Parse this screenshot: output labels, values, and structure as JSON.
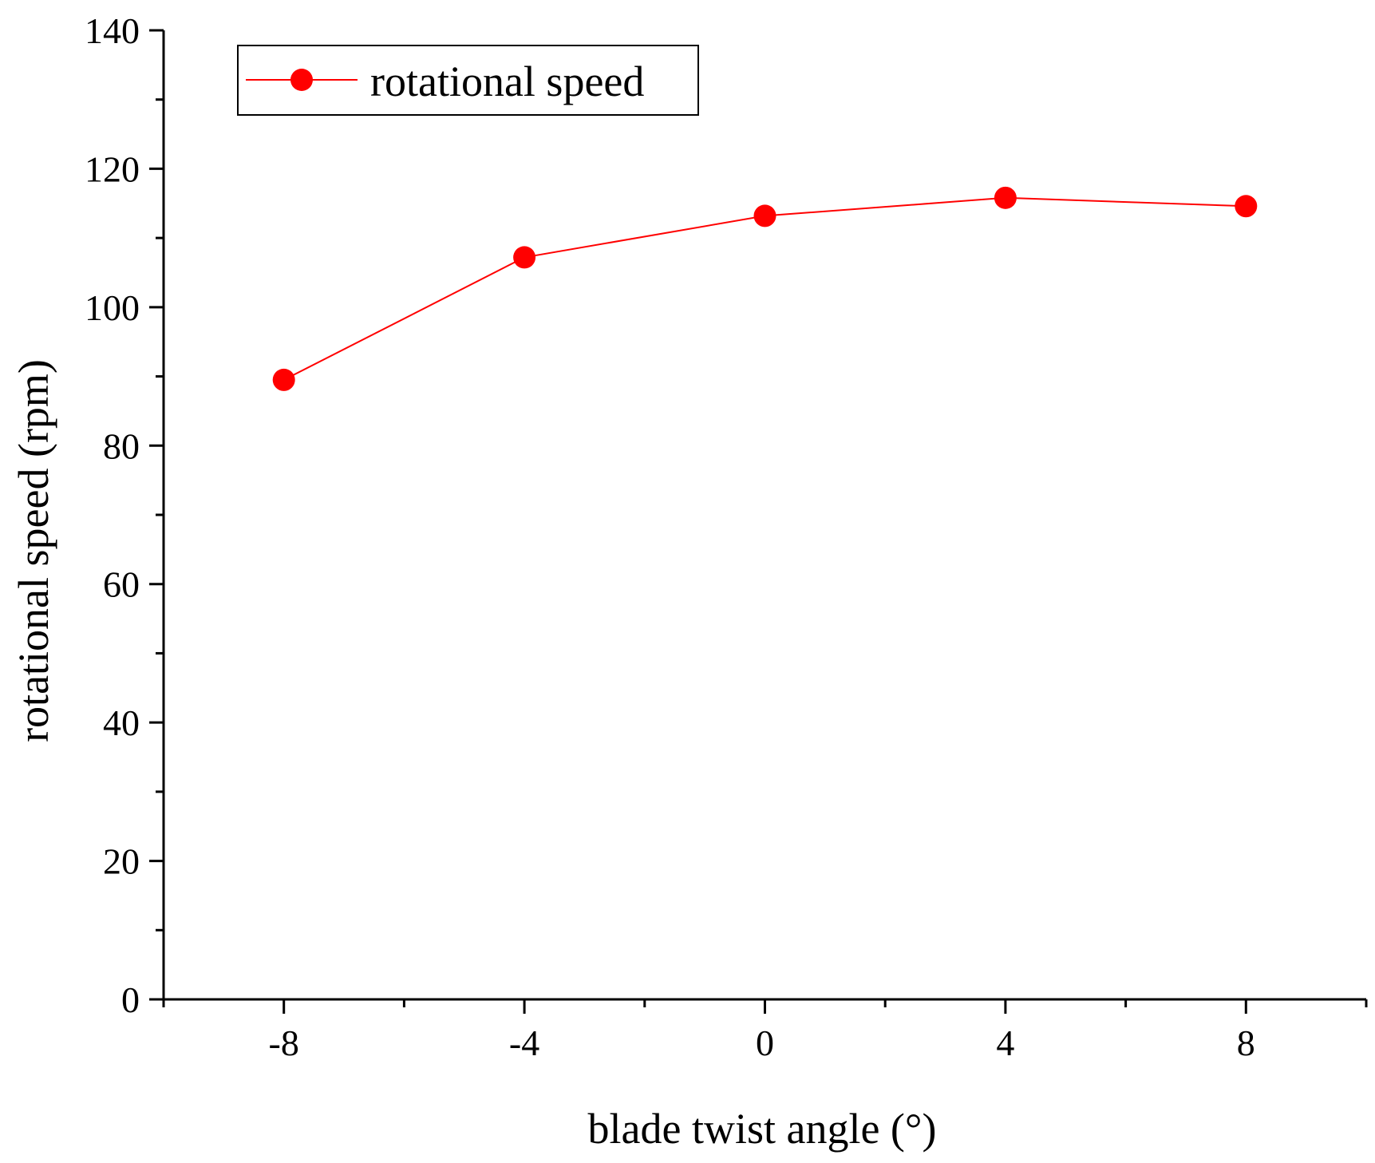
{
  "chart_data": {
    "type": "line",
    "title": "",
    "xlabel": "blade twist angle (°)",
    "ylabel": "rotational speed (rpm)",
    "xlim": [
      -10,
      10
    ],
    "ylim": [
      0,
      140
    ],
    "xticks": [
      -8,
      -4,
      0,
      4,
      8
    ],
    "xtick_labels": [
      "-8",
      "-4",
      "0",
      "4",
      "8"
    ],
    "yticks": [
      0,
      20,
      40,
      60,
      80,
      100,
      120,
      140
    ],
    "ytick_labels": [
      "0",
      "20",
      "40",
      "60",
      "80",
      "100",
      "120",
      "140"
    ],
    "x_minor_ticks": [
      -10,
      -6,
      -2,
      2,
      6,
      10
    ],
    "y_minor_ticks": [
      10,
      30,
      50,
      70,
      90,
      110,
      130
    ],
    "grid": false,
    "legend_position": "top-left",
    "series": [
      {
        "name": "rotational speed",
        "color": "#ff0000",
        "marker": "circle",
        "x": [
          -8,
          -4,
          0,
          4,
          8
        ],
        "values": [
          89.5,
          107.2,
          113.2,
          115.8,
          114.6
        ]
      }
    ]
  }
}
